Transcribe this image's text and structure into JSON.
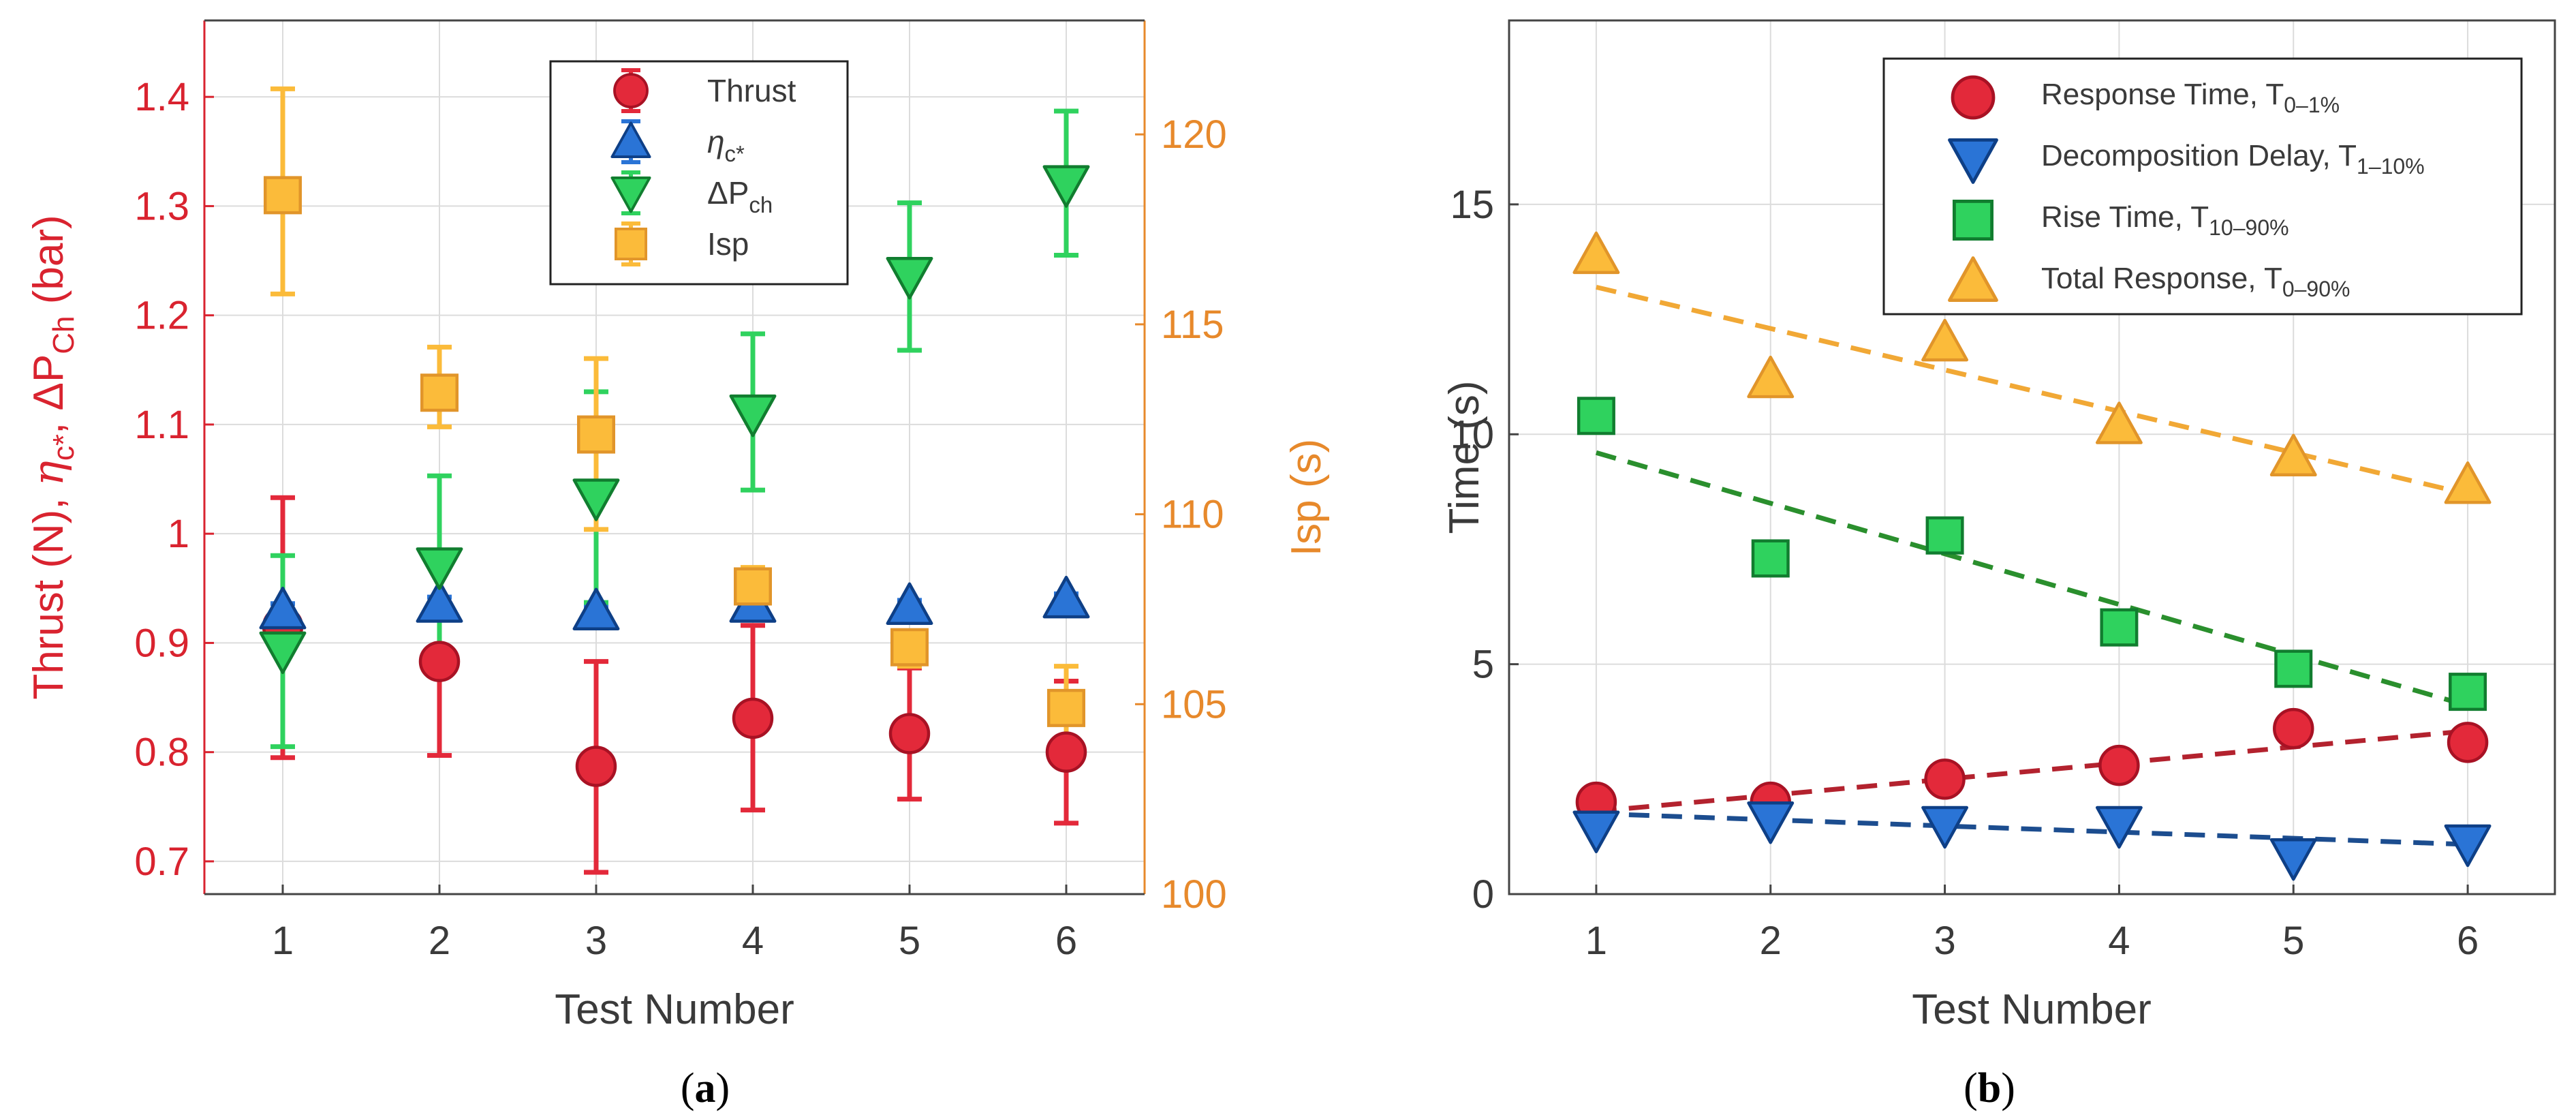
{
  "chart_data": [
    {
      "panel_label": "(a)",
      "panel_letter": "a",
      "type": "scatter",
      "xlabel": "Test Number",
      "ylabel_parts": {
        "a": "Thrust (N), ",
        "eta": "η",
        "eta_sub": "c*",
        "b": ", ΔP",
        "dp_sub": "Ch",
        "c": " (bar)"
      },
      "y2label": "Isp (s)",
      "x_ticks": [
        "1",
        "2",
        "3",
        "4",
        "5",
        "6"
      ],
      "xlim": [
        0.5,
        6.5
      ],
      "ylim": [
        0.67,
        1.47
      ],
      "y_ticks": [
        "0.7",
        "0.8",
        "0.9",
        "1",
        "1.1",
        "1.2",
        "1.3",
        "1.4"
      ],
      "y2lim": [
        100,
        123
      ],
      "y2_ticks": [
        "100",
        "105",
        "110",
        "115",
        "120"
      ],
      "grid": true,
      "legend_position": "top-center",
      "series": [
        {
          "name": "Thrust",
          "name_main": "Thrust",
          "name_sub": "",
          "axis": "left",
          "marker": "circle",
          "color": "#e3293a",
          "edge": "#a81224",
          "x": [
            1,
            2,
            3,
            4,
            5,
            6
          ],
          "y": [
            0.915,
            0.883,
            0.787,
            0.831,
            0.817,
            0.8
          ],
          "err_low": [
            0.795,
            0.797,
            0.69,
            0.747,
            0.757,
            0.735
          ],
          "err_high": [
            1.033,
            0.972,
            0.883,
            0.916,
            0.877,
            0.865
          ]
        },
        {
          "name": "ηc*",
          "name_main": "η",
          "name_sub": "c*",
          "axis": "left",
          "marker": "triangle-up",
          "color": "#2a74d6",
          "edge": "#0e3f86",
          "x": [
            1,
            2,
            3,
            4,
            5,
            6
          ],
          "y": [
            0.93,
            0.936,
            0.929,
            0.936,
            0.934,
            0.94
          ],
          "err_low": [
            0.925,
            0.93,
            0.924,
            0.93,
            0.929,
            0.935
          ],
          "err_high": [
            0.936,
            0.942,
            0.934,
            0.941,
            0.939,
            0.945
          ]
        },
        {
          "name": "ΔPch",
          "name_main": "ΔP",
          "name_sub": "ch",
          "axis": "left",
          "marker": "triangle-down",
          "color": "#2fd25e",
          "edge": "#117d2f",
          "x": [
            1,
            2,
            3,
            4,
            5,
            6
          ],
          "y": [
            0.893,
            0.97,
            1.033,
            1.11,
            1.236,
            1.32
          ],
          "err_low": [
            0.805,
            0.888,
            0.937,
            1.04,
            1.168,
            1.255
          ],
          "err_high": [
            0.98,
            1.053,
            1.13,
            1.183,
            1.303,
            1.387
          ]
        },
        {
          "name": "Isp",
          "name_main": "Isp",
          "name_sub": "",
          "axis": "right",
          "marker": "square",
          "color": "#fbbb3a",
          "edge": "#e1952a",
          "x": [
            1,
            2,
            3,
            4,
            5,
            6
          ],
          "y": [
            118.4,
            113.2,
            112.1,
            108.1,
            106.5,
            104.9
          ],
          "err_low": [
            115.8,
            112.3,
            109.6,
            107.6,
            106.0,
            103.8
          ],
          "err_high": [
            121.2,
            114.4,
            114.1,
            108.6,
            106.9,
            106.0
          ]
        }
      ]
    },
    {
      "panel_label": "(b)",
      "panel_letter": "b",
      "type": "scatter",
      "xlabel": "Test Number",
      "ylabel": "Time (s)",
      "x_ticks": [
        "1",
        "2",
        "3",
        "4",
        "5",
        "6"
      ],
      "xlim": [
        0.5,
        6.5
      ],
      "ylim": [
        0,
        19
      ],
      "y_ticks": [
        "0",
        "5",
        "10",
        "15"
      ],
      "grid": true,
      "legend_position": "top-right",
      "series": [
        {
          "name": "Response Time, T0–1%",
          "name_main": "Response Time, T",
          "name_sub": "0–1%",
          "marker": "circle",
          "color": "#e3293a",
          "edge": "#a81224",
          "trend_color": "#b3222e",
          "x": [
            1,
            2,
            3,
            4,
            5,
            6
          ],
          "y": [
            2.0,
            2.0,
            2.5,
            2.8,
            3.6,
            3.3
          ],
          "trend": [
            1.8,
            3.55
          ]
        },
        {
          "name": "Decomposition Delay, T1–10%",
          "name_main": "Decomposition Delay, T",
          "name_sub": "1–10%",
          "marker": "triangle-down",
          "color": "#2a74d6",
          "edge": "#0e3f86",
          "trend_color": "#1c4d8f",
          "x": [
            1,
            2,
            3,
            4,
            5,
            6
          ],
          "y": [
            1.4,
            1.6,
            1.5,
            1.5,
            0.8,
            1.1
          ],
          "trend": [
            1.75,
            1.08
          ]
        },
        {
          "name": "Rise Time, T10–90%",
          "name_main": "Rise Time, T",
          "name_sub": "10–90%",
          "marker": "square",
          "color": "#2fd25e",
          "edge": "#117d2f",
          "trend_color": "#2a8f2d",
          "x": [
            1,
            2,
            3,
            4,
            5,
            6
          ],
          "y": [
            10.4,
            7.3,
            7.8,
            5.8,
            4.9,
            4.4
          ],
          "trend": [
            9.6,
            4.1
          ]
        },
        {
          "name": "Total Response, T0–90%",
          "name_main": "Total Response, T",
          "name_sub": "0–90%",
          "marker": "triangle-up",
          "color": "#fbbb3a",
          "edge": "#e1952a",
          "trend_color": "#f1a835",
          "x": [
            1,
            2,
            3,
            4,
            5,
            6
          ],
          "y": [
            13.9,
            11.2,
            12.0,
            10.2,
            9.5,
            8.9
          ],
          "trend": [
            13.2,
            8.7
          ]
        }
      ]
    }
  ],
  "colors": {
    "left_axis": "#d9232f",
    "right_axis": "#e7892b",
    "grid": "#dcdcdc",
    "axis": "#444444",
    "text": "#3a3a3a"
  }
}
